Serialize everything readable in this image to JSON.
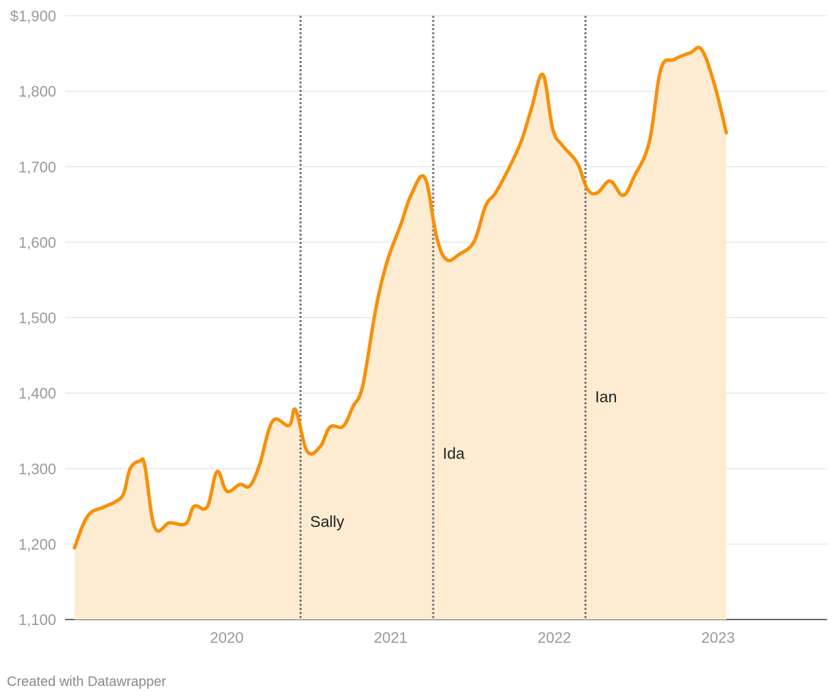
{
  "chart_data": {
    "type": "area",
    "title": "",
    "xlabel": "",
    "ylabel": "",
    "y_axis": {
      "min": 1100,
      "max": 1900,
      "ticks": [
        1100,
        1200,
        1300,
        1400,
        1500,
        1600,
        1700,
        1800,
        1900
      ],
      "tick_labels": [
        "1,100",
        "1,200",
        "1,300",
        "1,400",
        "1,500",
        "1,600",
        "1,700",
        "1,800",
        "$1,900"
      ],
      "grid": true
    },
    "x_axis": {
      "min": 2019.07,
      "max": 2023.6,
      "ticks": [
        2020,
        2021,
        2022,
        2023
      ],
      "tick_labels": [
        "2020",
        "2021",
        "2022",
        "2023"
      ]
    },
    "series": [
      {
        "color": "#f7900a",
        "fill": "#fdecd2",
        "points": [
          [
            2019.07,
            1195
          ],
          [
            2019.15,
            1237
          ],
          [
            2019.25,
            1249
          ],
          [
            2019.32,
            1256
          ],
          [
            2019.37,
            1267
          ],
          [
            2019.41,
            1300
          ],
          [
            2019.47,
            1310
          ],
          [
            2019.5,
            1303
          ],
          [
            2019.56,
            1222
          ],
          [
            2019.65,
            1228
          ],
          [
            2019.75,
            1227
          ],
          [
            2019.8,
            1250
          ],
          [
            2019.88,
            1249
          ],
          [
            2019.94,
            1296
          ],
          [
            2020.0,
            1270
          ],
          [
            2020.08,
            1279
          ],
          [
            2020.14,
            1277
          ],
          [
            2020.2,
            1305
          ],
          [
            2020.28,
            1363
          ],
          [
            2020.38,
            1357
          ],
          [
            2020.42,
            1378
          ],
          [
            2020.49,
            1323
          ],
          [
            2020.57,
            1329
          ],
          [
            2020.63,
            1355
          ],
          [
            2020.71,
            1356
          ],
          [
            2020.77,
            1382
          ],
          [
            2020.83,
            1410
          ],
          [
            2020.91,
            1512
          ],
          [
            2020.98,
            1575
          ],
          [
            2021.06,
            1622
          ],
          [
            2021.13,
            1665
          ],
          [
            2021.21,
            1685
          ],
          [
            2021.28,
            1608
          ],
          [
            2021.34,
            1577
          ],
          [
            2021.42,
            1584
          ],
          [
            2021.51,
            1601
          ],
          [
            2021.58,
            1648
          ],
          [
            2021.64,
            1665
          ],
          [
            2021.72,
            1697
          ],
          [
            2021.8,
            1735
          ],
          [
            2021.86,
            1777
          ],
          [
            2021.93,
            1822
          ],
          [
            2021.99,
            1750
          ],
          [
            2022.05,
            1728
          ],
          [
            2022.14,
            1705
          ],
          [
            2022.2,
            1671
          ],
          [
            2022.26,
            1665
          ],
          [
            2022.34,
            1681
          ],
          [
            2022.42,
            1662
          ],
          [
            2022.49,
            1688
          ],
          [
            2022.58,
            1733
          ],
          [
            2022.65,
            1829
          ],
          [
            2022.73,
            1842
          ],
          [
            2022.83,
            1851
          ],
          [
            2022.9,
            1855
          ],
          [
            2022.98,
            1807
          ],
          [
            2023.05,
            1745
          ]
        ]
      }
    ],
    "annotations": [
      {
        "x": 2020.45,
        "label": "Sally",
        "label_y": 1230
      },
      {
        "x": 2021.26,
        "label": "Ida",
        "label_y": 1320
      },
      {
        "x": 2022.19,
        "label": "Ian",
        "label_y": 1395
      }
    ],
    "credit": "Created with Datawrapper"
  }
}
